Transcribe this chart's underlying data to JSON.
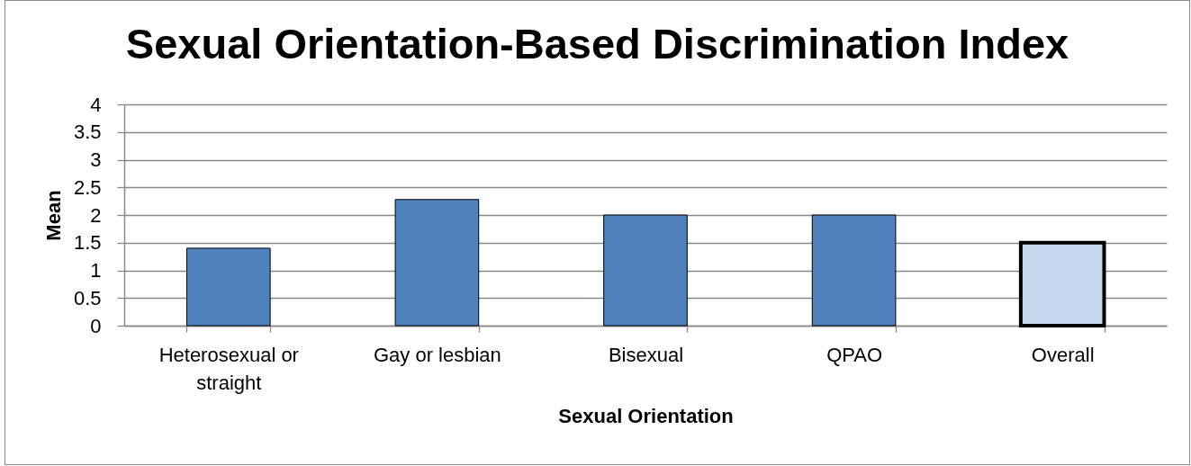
{
  "chart_data": {
    "type": "bar",
    "title": "Sexual Orientation-Based Discrimination Index",
    "xlabel": "Sexual Orientation",
    "ylabel": "Mean",
    "categories": [
      "Heterosexual or straight",
      "Gay or lesbian",
      "Bisexual",
      "QPAO",
      "Overall"
    ],
    "values": [
      1.4,
      2.28,
      2.0,
      2.0,
      1.5
    ],
    "colors": [
      "#4f81bd",
      "#4f81bd",
      "#4f81bd",
      "#4f81bd",
      "#c6d9f0"
    ],
    "ylim": [
      0,
      4
    ],
    "yticks": [
      0,
      0.5,
      1,
      1.5,
      2,
      2.5,
      3,
      3.5,
      4
    ],
    "grid": "y"
  }
}
